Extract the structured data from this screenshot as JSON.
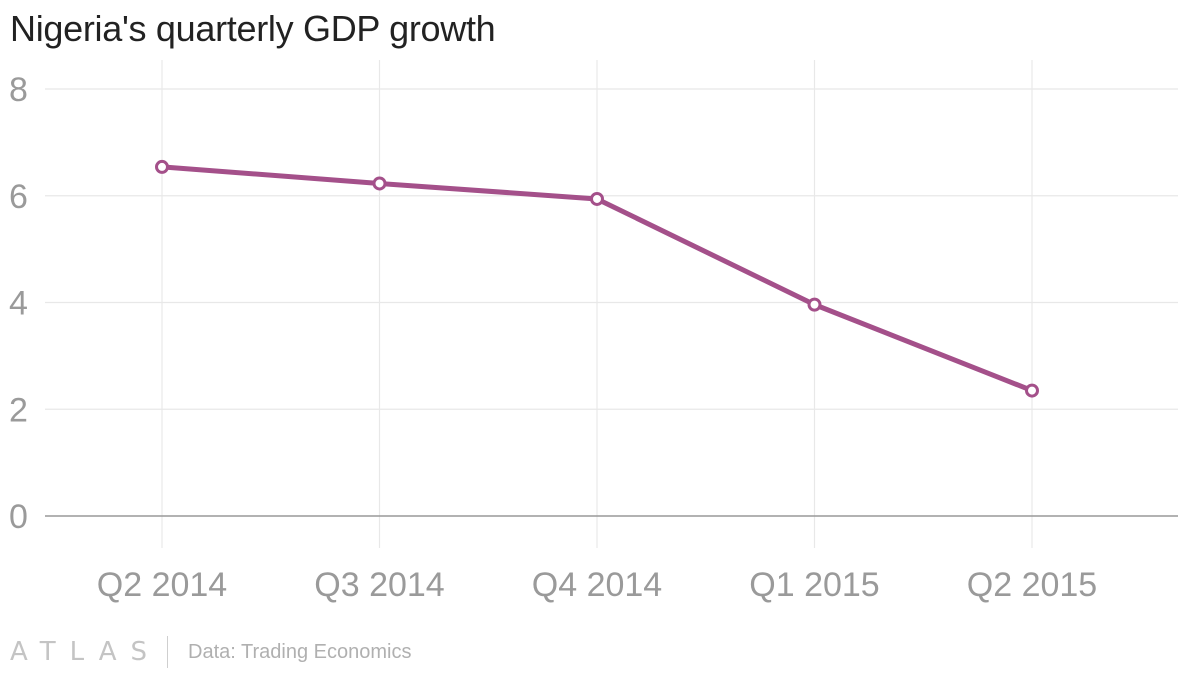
{
  "title": "Nigeria's quarterly GDP growth",
  "footer": {
    "brand": "ATLAS",
    "source": "Data: Trading Economics"
  },
  "colors": {
    "line": "#a4508a",
    "grid": "#e8e8e8",
    "axis": "#999999",
    "tick_text": "#9a9a9a",
    "title": "#222222"
  },
  "chart_data": {
    "type": "line",
    "title": "Nigeria's quarterly GDP growth",
    "xlabel": "",
    "ylabel": "",
    "categories": [
      "Q2 2014",
      "Q3 2014",
      "Q4 2014",
      "Q1 2015",
      "Q2 2015"
    ],
    "series": [
      {
        "values": [
          6.54,
          6.23,
          5.94,
          3.96,
          2.35
        ]
      }
    ],
    "ylim": [
      0,
      8
    ],
    "yticks": [
      0,
      2,
      4,
      6,
      8
    ],
    "grid": true,
    "markers": "hollow circles",
    "legend": "none"
  }
}
